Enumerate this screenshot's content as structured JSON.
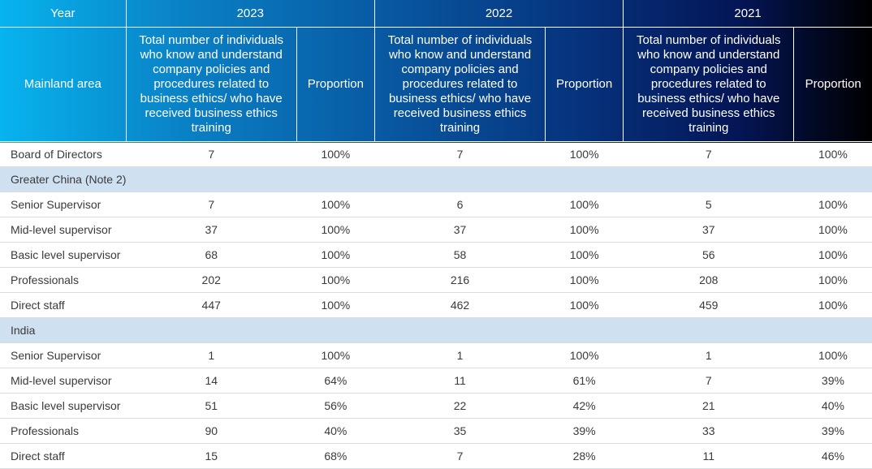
{
  "header": {
    "year_label": "Year",
    "years": [
      "2023",
      "2022",
      "2021"
    ],
    "area_label": "Mainland area",
    "count_label": "Total number of individuals who know and understand company policies and procedures related to business ethics/ who have received business ethics training",
    "proportion_label": "Proportion"
  },
  "rows": {
    "board": {
      "label": "Board of Directors",
      "values": [
        "7",
        "100%",
        "7",
        "100%",
        "7",
        "100%"
      ]
    },
    "section1": "Greater China (Note 2)",
    "gc": [
      {
        "label": "Senior Supervisor",
        "values": [
          "7",
          "100%",
          "6",
          "100%",
          "5",
          "100%"
        ]
      },
      {
        "label": "Mid-level supervisor",
        "values": [
          "37",
          "100%",
          "37",
          "100%",
          "37",
          "100%"
        ]
      },
      {
        "label": "Basic level supervisor",
        "values": [
          "68",
          "100%",
          "58",
          "100%",
          "56",
          "100%"
        ]
      },
      {
        "label": "Professionals",
        "values": [
          "202",
          "100%",
          "216",
          "100%",
          "208",
          "100%"
        ]
      },
      {
        "label": "Direct staff",
        "values": [
          "447",
          "100%",
          "462",
          "100%",
          "459",
          "100%"
        ]
      }
    ],
    "section2": "India",
    "india": [
      {
        "label": "Senior Supervisor",
        "values": [
          "1",
          "100%",
          "1",
          "100%",
          "1",
          "100%"
        ]
      },
      {
        "label": "Mid-level supervisor",
        "values": [
          "14",
          "64%",
          "11",
          "61%",
          "7",
          "39%"
        ]
      },
      {
        "label": "Basic level supervisor",
        "values": [
          "51",
          "56%",
          "22",
          "42%",
          "21",
          "40%"
        ]
      },
      {
        "label": "Professionals",
        "values": [
          "90",
          "40%",
          "35",
          "39%",
          "33",
          "39%"
        ]
      },
      {
        "label": "Direct staff",
        "values": [
          "15",
          "68%",
          "7",
          "28%",
          "11",
          "46%"
        ]
      }
    ]
  }
}
